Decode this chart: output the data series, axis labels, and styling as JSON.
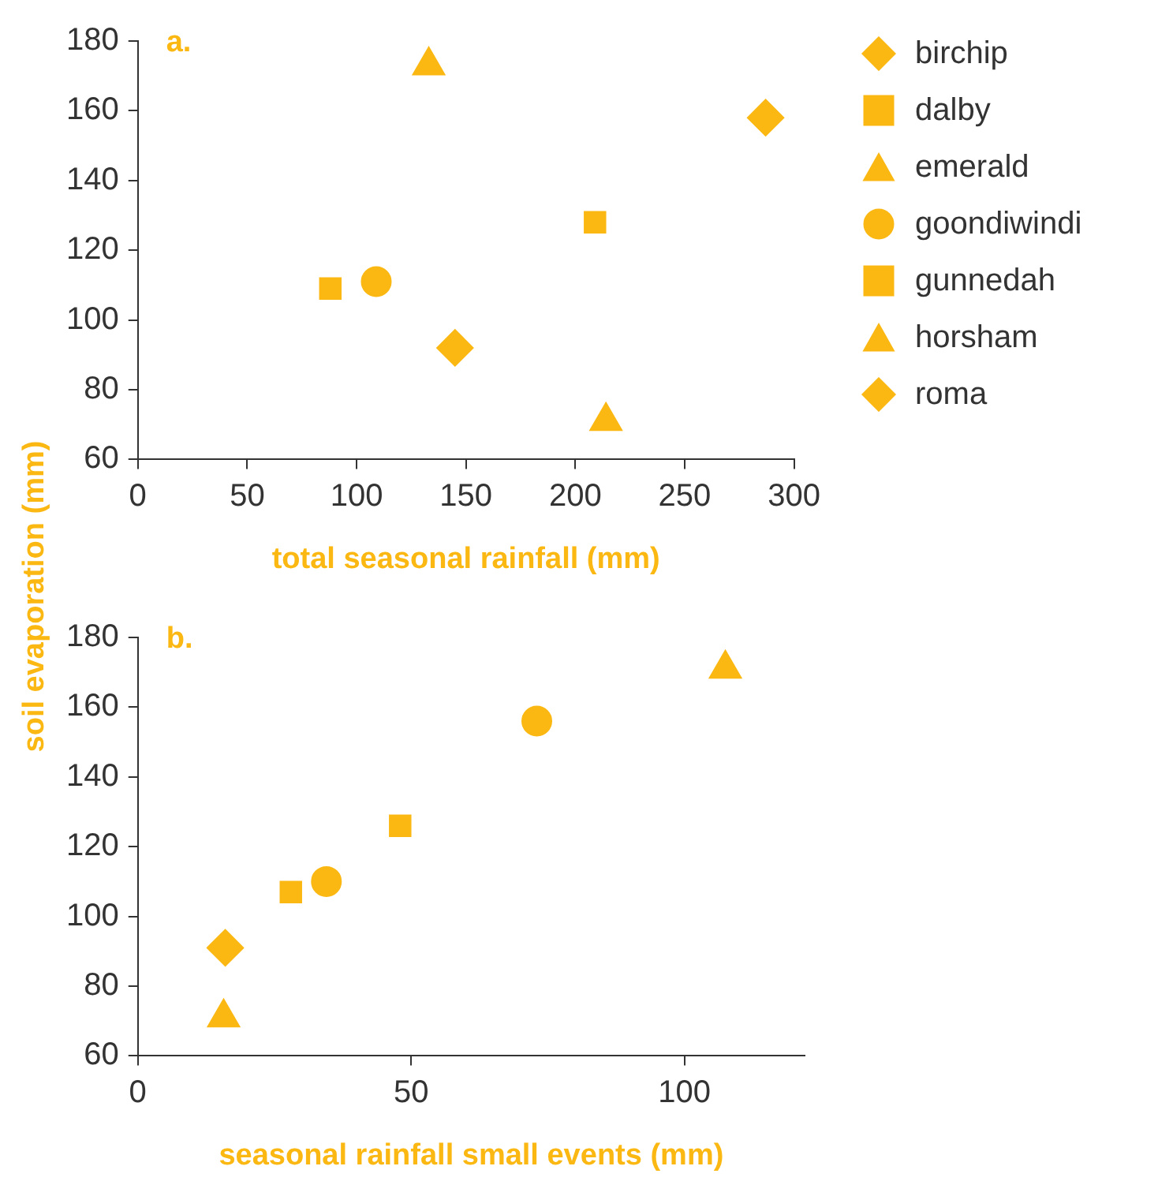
{
  "chart_data": [
    {
      "type": "scatter",
      "xlabel": "total seasonal rainfall (mm)",
      "ylabel": "soil evaporation (mm)",
      "annotations": [
        "a."
      ],
      "xlim": [
        0,
        300
      ],
      "xticks": [
        0,
        50,
        100,
        150,
        200,
        250,
        300
      ],
      "ylim": [
        60,
        180
      ],
      "yticks": [
        60,
        80,
        100,
        120,
        140,
        160,
        180
      ],
      "grid": false,
      "legend": "right",
      "series": [
        {
          "name": "birchip",
          "color": "#fbb813",
          "marker": "diamond",
          "x": [
            287
          ],
          "values": [
            158
          ]
        },
        {
          "name": "dalby",
          "color": "#fbb813",
          "marker": "square",
          "x": [
            88
          ],
          "values": [
            109
          ]
        },
        {
          "name": "emerald",
          "color": "#fbb813",
          "marker": "triangle",
          "x": [
            214
          ],
          "values": [
            71
          ]
        },
        {
          "name": "goondiwindi",
          "color": "#fbb813",
          "marker": "circle",
          "x": [
            109
          ],
          "values": [
            111
          ]
        },
        {
          "name": "gunnedah",
          "color": "#fbb813",
          "marker": "square",
          "x": [
            209
          ],
          "values": [
            128
          ]
        },
        {
          "name": "horsham",
          "color": "#fbb813",
          "marker": "triangle",
          "x": [
            133
          ],
          "values": [
            173
          ]
        },
        {
          "name": "roma",
          "color": "#fbb813",
          "marker": "diamond",
          "x": [
            145
          ],
          "values": [
            92
          ]
        }
      ]
    },
    {
      "type": "scatter",
      "xlabel": "seasonal rainfall small events (mm)",
      "annotations": [
        "b."
      ],
      "xlim": [
        0,
        122
      ],
      "xticks": [
        0,
        50,
        100
      ],
      "ylim": [
        60,
        180
      ],
      "yticks": [
        60,
        80,
        100,
        120,
        140,
        160,
        180
      ],
      "grid": false,
      "series": [
        {
          "color": "#fbb813",
          "marker": "circle",
          "x": [
            73
          ],
          "values": [
            156
          ]
        },
        {
          "color": "#fbb813",
          "marker": "square",
          "x": [
            28
          ],
          "values": [
            107
          ]
        },
        {
          "color": "#fbb813",
          "marker": "triangle",
          "x": [
            15.7
          ],
          "values": [
            71
          ]
        },
        {
          "color": "#fbb813",
          "marker": "circle",
          "x": [
            34.5
          ],
          "values": [
            110
          ]
        },
        {
          "color": "#fbb813",
          "marker": "square",
          "x": [
            48
          ],
          "values": [
            126
          ]
        },
        {
          "color": "#fbb813",
          "marker": "triangle",
          "x": [
            107.5
          ],
          "values": [
            171
          ]
        },
        {
          "color": "#fbb813",
          "marker": "diamond",
          "x": [
            16
          ],
          "values": [
            91
          ]
        }
      ]
    }
  ]
}
